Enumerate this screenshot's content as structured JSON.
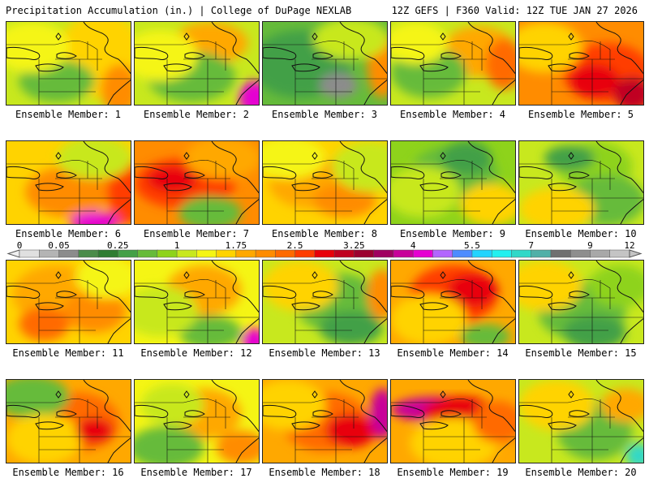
{
  "header": {
    "left": "Precipitation Accumulation (in.) | College of DuPage NEXLAB",
    "right": "12Z GEFS | F360 Valid: 12Z TUE JAN 27 2026"
  },
  "chart_data": {
    "type": "heatmap",
    "title": "Precipitation Accumulation (in.)",
    "source": "College of DuPage NEXLAB",
    "model": "12Z GEFS",
    "forecast_hour": "F360",
    "valid": "12Z TUE JAN 27 2026",
    "units": "in.",
    "colorbar": {
      "tick_labels": [
        "0",
        "0.05",
        "0.25",
        "1",
        "1.75",
        "2.5",
        "3.25",
        "4",
        "5.5",
        "7",
        "9",
        "12"
      ],
      "colors": [
        "#e0e0e0",
        "#b4b4b4",
        "#8c8c8c",
        "#4a8c4a",
        "#2e7d32",
        "#43a047",
        "#66bb3a",
        "#8ed31b",
        "#c8e81e",
        "#f5f514",
        "#ffd300",
        "#ffa800",
        "#ff8c00",
        "#ff6a00",
        "#ff3c00",
        "#e8000a",
        "#c00020",
        "#9c0030",
        "#a00060",
        "#c8009a",
        "#e600d2",
        "#b266ff",
        "#4d8cff",
        "#22d4ff",
        "#22f0f0",
        "#30d8c8",
        "#50b0a8",
        "#707070",
        "#8e8e8e",
        "#a8a8a8",
        "#c4c4c4"
      ]
    },
    "members": [
      {
        "label": "Ensemble Member: 1",
        "base": "#c8e81e",
        "blobs": [
          [
            "#ffd300",
            0.75,
            0.4,
            0.35,
            0.5
          ],
          [
            "#ff8c00",
            0.9,
            0.8,
            0.15,
            0.3
          ],
          [
            "#66bb3a",
            0.4,
            0.7,
            0.3,
            0.25
          ],
          [
            "#f5f514",
            0.2,
            0.3,
            0.3,
            0.3
          ]
        ]
      },
      {
        "label": "Ensemble Member: 2",
        "base": "#c8e81e",
        "blobs": [
          [
            "#ffa800",
            0.6,
            0.25,
            0.3,
            0.25
          ],
          [
            "#66bb3a",
            0.45,
            0.65,
            0.35,
            0.3
          ],
          [
            "#e600d2",
            0.95,
            0.9,
            0.12,
            0.2
          ],
          [
            "#f5f514",
            0.2,
            0.4,
            0.3,
            0.3
          ]
        ]
      },
      {
        "label": "Ensemble Member: 3",
        "base": "#66bb3a",
        "blobs": [
          [
            "#43a047",
            0.3,
            0.5,
            0.4,
            0.4
          ],
          [
            "#8c8c8c",
            0.6,
            0.75,
            0.15,
            0.15
          ],
          [
            "#ff8c00",
            0.95,
            0.5,
            0.12,
            0.4
          ],
          [
            "#c8e81e",
            0.7,
            0.2,
            0.3,
            0.25
          ]
        ]
      },
      {
        "label": "Ensemble Member: 4",
        "base": "#c8e81e",
        "blobs": [
          [
            "#ffa800",
            0.7,
            0.35,
            0.3,
            0.3
          ],
          [
            "#ff6a00",
            0.9,
            0.5,
            0.15,
            0.3
          ],
          [
            "#66bb3a",
            0.3,
            0.6,
            0.3,
            0.3
          ],
          [
            "#f5f514",
            0.2,
            0.25,
            0.25,
            0.25
          ]
        ]
      },
      {
        "label": "Ensemble Member: 5",
        "base": "#ff8c00",
        "blobs": [
          [
            "#ff3c00",
            0.7,
            0.6,
            0.35,
            0.35
          ],
          [
            "#e8000a",
            0.6,
            0.7,
            0.2,
            0.2
          ],
          [
            "#ffd300",
            0.2,
            0.3,
            0.3,
            0.3
          ],
          [
            "#c00020",
            0.9,
            0.85,
            0.15,
            0.2
          ]
        ]
      },
      {
        "label": "Ensemble Member: 6",
        "base": "#ffd300",
        "blobs": [
          [
            "#ff8c00",
            0.5,
            0.6,
            0.35,
            0.3
          ],
          [
            "#ff3c00",
            0.95,
            0.6,
            0.15,
            0.4
          ],
          [
            "#c8e81e",
            0.7,
            0.2,
            0.3,
            0.25
          ],
          [
            "#e600d2",
            0.7,
            0.95,
            0.2,
            0.12
          ]
        ]
      },
      {
        "label": "Ensemble Member: 7",
        "base": "#ff8c00",
        "blobs": [
          [
            "#ff3c00",
            0.4,
            0.5,
            0.4,
            0.3
          ],
          [
            "#ffa800",
            0.7,
            0.2,
            0.3,
            0.25
          ],
          [
            "#66bb3a",
            0.6,
            0.85,
            0.25,
            0.2
          ],
          [
            "#e8000a",
            0.3,
            0.45,
            0.2,
            0.15
          ]
        ]
      },
      {
        "label": "Ensemble Member: 8",
        "base": "#ffd300",
        "blobs": [
          [
            "#ffa800",
            0.4,
            0.5,
            0.35,
            0.3
          ],
          [
            "#ff8c00",
            0.65,
            0.7,
            0.25,
            0.2
          ],
          [
            "#c8e81e",
            0.85,
            0.3,
            0.3,
            0.3
          ],
          [
            "#f5f514",
            0.2,
            0.2,
            0.3,
            0.25
          ]
        ]
      },
      {
        "label": "Ensemble Member: 9",
        "base": "#8ed31b",
        "blobs": [
          [
            "#66bb3a",
            0.5,
            0.4,
            0.35,
            0.35
          ],
          [
            "#c8e81e",
            0.25,
            0.6,
            0.3,
            0.3
          ],
          [
            "#ffd300",
            0.8,
            0.75,
            0.25,
            0.25
          ],
          [
            "#43a047",
            0.6,
            0.2,
            0.2,
            0.2
          ]
        ]
      },
      {
        "label": "Ensemble Member: 10",
        "base": "#c8e81e",
        "blobs": [
          [
            "#8ed31b",
            0.6,
            0.3,
            0.3,
            0.3
          ],
          [
            "#66bb3a",
            0.7,
            0.7,
            0.3,
            0.3
          ],
          [
            "#ffd300",
            0.3,
            0.8,
            0.3,
            0.25
          ],
          [
            "#43a047",
            0.4,
            0.2,
            0.2,
            0.15
          ]
        ]
      },
      {
        "label": "Ensemble Member: 11",
        "base": "#ffd300",
        "blobs": [
          [
            "#ffa800",
            0.4,
            0.4,
            0.35,
            0.35
          ],
          [
            "#ff8c00",
            0.7,
            0.6,
            0.25,
            0.25
          ],
          [
            "#f5f514",
            0.8,
            0.2,
            0.25,
            0.25
          ],
          [
            "#ff6a00",
            0.3,
            0.75,
            0.2,
            0.2
          ]
        ]
      },
      {
        "label": "Ensemble Member: 12",
        "base": "#f5f514",
        "blobs": [
          [
            "#ffa800",
            0.55,
            0.35,
            0.3,
            0.3
          ],
          [
            "#66bb3a",
            0.6,
            0.85,
            0.25,
            0.2
          ],
          [
            "#e600d2",
            0.95,
            0.95,
            0.1,
            0.15
          ],
          [
            "#c8e81e",
            0.2,
            0.6,
            0.3,
            0.3
          ]
        ]
      },
      {
        "label": "Ensemble Member: 13",
        "base": "#c8e81e",
        "blobs": [
          [
            "#66bb3a",
            0.6,
            0.5,
            0.35,
            0.35
          ],
          [
            "#43a047",
            0.7,
            0.8,
            0.25,
            0.2
          ],
          [
            "#ffd300",
            0.3,
            0.3,
            0.3,
            0.3
          ],
          [
            "#ff8c00",
            0.95,
            0.4,
            0.12,
            0.3
          ]
        ]
      },
      {
        "label": "Ensemble Member: 14",
        "base": "#ffa800",
        "blobs": [
          [
            "#ff3c00",
            0.5,
            0.4,
            0.35,
            0.35
          ],
          [
            "#e8000a",
            0.65,
            0.35,
            0.2,
            0.2
          ],
          [
            "#ffd300",
            0.3,
            0.7,
            0.3,
            0.3
          ],
          [
            "#66bb3a",
            0.75,
            0.9,
            0.2,
            0.15
          ]
        ]
      },
      {
        "label": "Ensemble Member: 15",
        "base": "#c8e81e",
        "blobs": [
          [
            "#66bb3a",
            0.5,
            0.6,
            0.35,
            0.35
          ],
          [
            "#43a047",
            0.6,
            0.85,
            0.25,
            0.2
          ],
          [
            "#ffd300",
            0.2,
            0.3,
            0.3,
            0.3
          ],
          [
            "#8ed31b",
            0.8,
            0.3,
            0.25,
            0.25
          ]
        ]
      },
      {
        "label": "Ensemble Member: 16",
        "base": "#ffa800",
        "blobs": [
          [
            "#ff6a00",
            0.55,
            0.5,
            0.35,
            0.35
          ],
          [
            "#66bb3a",
            0.2,
            0.2,
            0.3,
            0.25
          ],
          [
            "#ffd300",
            0.3,
            0.7,
            0.3,
            0.3
          ],
          [
            "#e8000a",
            0.7,
            0.6,
            0.15,
            0.15
          ]
        ]
      },
      {
        "label": "Ensemble Member: 17",
        "base": "#f5f514",
        "blobs": [
          [
            "#ffa800",
            0.55,
            0.4,
            0.3,
            0.3
          ],
          [
            "#66bb3a",
            0.25,
            0.8,
            0.3,
            0.25
          ],
          [
            "#ff8c00",
            0.85,
            0.8,
            0.2,
            0.2
          ],
          [
            "#c8e81e",
            0.3,
            0.3,
            0.25,
            0.25
          ]
        ]
      },
      {
        "label": "Ensemble Member: 18",
        "base": "#ffa800",
        "blobs": [
          [
            "#ff6a00",
            0.5,
            0.5,
            0.35,
            0.35
          ],
          [
            "#e8000a",
            0.7,
            0.6,
            0.2,
            0.2
          ],
          [
            "#c8009a",
            0.95,
            0.4,
            0.1,
            0.3
          ],
          [
            "#ffd300",
            0.2,
            0.3,
            0.3,
            0.3
          ]
        ]
      },
      {
        "label": "Ensemble Member: 19",
        "base": "#ffa800",
        "blobs": [
          [
            "#c8009a",
            0.35,
            0.35,
            0.35,
            0.15
          ],
          [
            "#e8000a",
            0.55,
            0.4,
            0.3,
            0.2
          ],
          [
            "#ffd300",
            0.5,
            0.75,
            0.35,
            0.3
          ],
          [
            "#ff6a00",
            0.85,
            0.5,
            0.2,
            0.25
          ]
        ]
      },
      {
        "label": "Ensemble Member: 20",
        "base": "#c8e81e",
        "blobs": [
          [
            "#66bb3a",
            0.6,
            0.6,
            0.3,
            0.35
          ],
          [
            "#ffd300",
            0.3,
            0.3,
            0.3,
            0.3
          ],
          [
            "#ffa800",
            0.85,
            0.3,
            0.2,
            0.2
          ],
          [
            "#30d8c8",
            0.95,
            0.9,
            0.1,
            0.15
          ]
        ]
      }
    ]
  }
}
